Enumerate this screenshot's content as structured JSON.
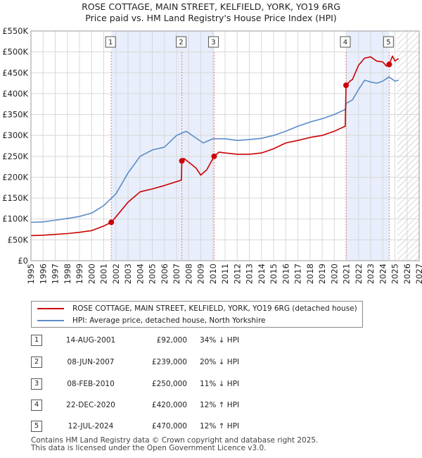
{
  "header": {
    "title_line1": "ROSE COTTAGE, MAIN STREET, KELFIELD, YORK, YO19 6RG",
    "title_line2": "Price paid vs. HM Land Registry's House Price Index (HPI)"
  },
  "colors": {
    "property_line": "#cc0000",
    "hpi_line": "#5b8cc8",
    "shade": "#e8eefb",
    "marker_line": "#e08080",
    "grid": "#d8d8d8"
  },
  "chart_data": {
    "type": "line",
    "title": "Price paid vs. HM Land Registry's House Price Index (HPI)",
    "xlabel": "",
    "ylabel": "",
    "xlim": [
      1995,
      2027
    ],
    "ylim": [
      0,
      550000
    ],
    "y_ticks": [
      {
        "value": 0,
        "label": "£0"
      },
      {
        "value": 50000,
        "label": "£50K"
      },
      {
        "value": 100000,
        "label": "£100K"
      },
      {
        "value": 150000,
        "label": "£150K"
      },
      {
        "value": 200000,
        "label": "£200K"
      },
      {
        "value": 250000,
        "label": "£250K"
      },
      {
        "value": 300000,
        "label": "£300K"
      },
      {
        "value": 350000,
        "label": "£350K"
      },
      {
        "value": 400000,
        "label": "£400K"
      },
      {
        "value": 450000,
        "label": "£450K"
      },
      {
        "value": 500000,
        "label": "£500K"
      },
      {
        "value": 550000,
        "label": "£550K"
      }
    ],
    "x_ticks": [
      "1995",
      "1996",
      "1997",
      "1998",
      "1999",
      "2000",
      "2001",
      "2002",
      "2003",
      "2004",
      "2005",
      "2006",
      "2007",
      "2008",
      "2009",
      "2010",
      "2011",
      "2012",
      "2013",
      "2014",
      "2015",
      "2016",
      "2017",
      "2018",
      "2019",
      "2020",
      "2021",
      "2022",
      "2023",
      "2024",
      "2025",
      "2026",
      "2027"
    ],
    "shaded_ranges": [
      [
        2001.62,
        2010.1
      ],
      [
        2020.97,
        2024.53
      ]
    ],
    "future_hatch_from": 2025.2,
    "series": [
      {
        "name": "ROSE COTTAGE, MAIN STREET, KELFIELD, YORK, YO19 6RG (detached house)",
        "x": [
          1995,
          1996,
          1997,
          1998,
          1999,
          2000,
          2001.0,
          2001.62,
          2002,
          2003,
          2004,
          2005,
          2006,
          2007.4,
          2007.44,
          2007.6,
          2008,
          2008.6,
          2009,
          2009.5,
          2010.1,
          2010.5,
          2011,
          2012,
          2013,
          2014,
          2015,
          2016,
          2017,
          2018,
          2019,
          2020,
          2020.9,
          2020.97,
          2021.3,
          2021.5,
          2022,
          2022.5,
          2023,
          2023.5,
          2024,
          2024.3,
          2024.53,
          2024.8,
          2025.0,
          2025.3
        ],
        "values": [
          60000,
          61000,
          63000,
          65000,
          68000,
          72000,
          83000,
          92000,
          105000,
          140000,
          165000,
          172000,
          180000,
          193000,
          239000,
          245000,
          236000,
          222000,
          205000,
          218000,
          250000,
          260000,
          258000,
          255000,
          255000,
          258000,
          268000,
          282000,
          288000,
          295000,
          300000,
          310000,
          322000,
          420000,
          430000,
          434000,
          468000,
          485000,
          488000,
          478000,
          476000,
          466000,
          470000,
          490000,
          478000,
          484000
        ]
      },
      {
        "name": "HPI: Average price, detached house, North Yorkshire",
        "x": [
          1995,
          1996,
          1997,
          1998,
          1999,
          2000,
          2001,
          2002,
          2003,
          2004,
          2005,
          2006,
          2007,
          2007.8,
          2008.5,
          2009.2,
          2010,
          2011,
          2012,
          2013,
          2014,
          2015,
          2016,
          2017,
          2018,
          2019,
          2020,
          2020.9,
          2021,
          2021.5,
          2022,
          2022.5,
          2023,
          2023.5,
          2024,
          2024.5,
          2025.0,
          2025.3
        ],
        "values": [
          92000,
          93000,
          97000,
          101000,
          106000,
          114000,
          132000,
          160000,
          210000,
          250000,
          265000,
          272000,
          300000,
          310000,
          296000,
          282000,
          292000,
          292000,
          288000,
          290000,
          293000,
          300000,
          310000,
          322000,
          332000,
          340000,
          350000,
          362000,
          377000,
          385000,
          410000,
          432000,
          428000,
          425000,
          430000,
          440000,
          430000,
          432000
        ]
      }
    ],
    "sale_markers": [
      {
        "id": "1",
        "x": 2001.62,
        "value": 92000
      },
      {
        "id": "2",
        "x": 2007.44,
        "value": 239000
      },
      {
        "id": "3",
        "x": 2010.1,
        "value": 250000
      },
      {
        "id": "4",
        "x": 2020.97,
        "value": 420000
      },
      {
        "id": "5",
        "x": 2024.53,
        "value": 470000
      }
    ]
  },
  "legend": {
    "property_label": "ROSE COTTAGE, MAIN STREET, KELFIELD, YORK, YO19 6RG (detached house)",
    "hpi_label": "HPI: Average price, detached house, North Yorkshire"
  },
  "events": [
    {
      "num": "1",
      "date": "14-AUG-2001",
      "price": "£92,000",
      "hpi": "34% ↓ HPI"
    },
    {
      "num": "2",
      "date": "08-JUN-2007",
      "price": "£239,000",
      "hpi": "20% ↓ HPI"
    },
    {
      "num": "3",
      "date": "08-FEB-2010",
      "price": "£250,000",
      "hpi": "11% ↓ HPI"
    },
    {
      "num": "4",
      "date": "22-DEC-2020",
      "price": "£420,000",
      "hpi": "12% ↑ HPI"
    },
    {
      "num": "5",
      "date": "12-JUL-2024",
      "price": "£470,000",
      "hpi": "12% ↑ HPI"
    }
  ],
  "footer": {
    "line1": "Contains HM Land Registry data © Crown copyright and database right 2025.",
    "line2": "This data is licensed under the Open Government Licence v3.0."
  }
}
